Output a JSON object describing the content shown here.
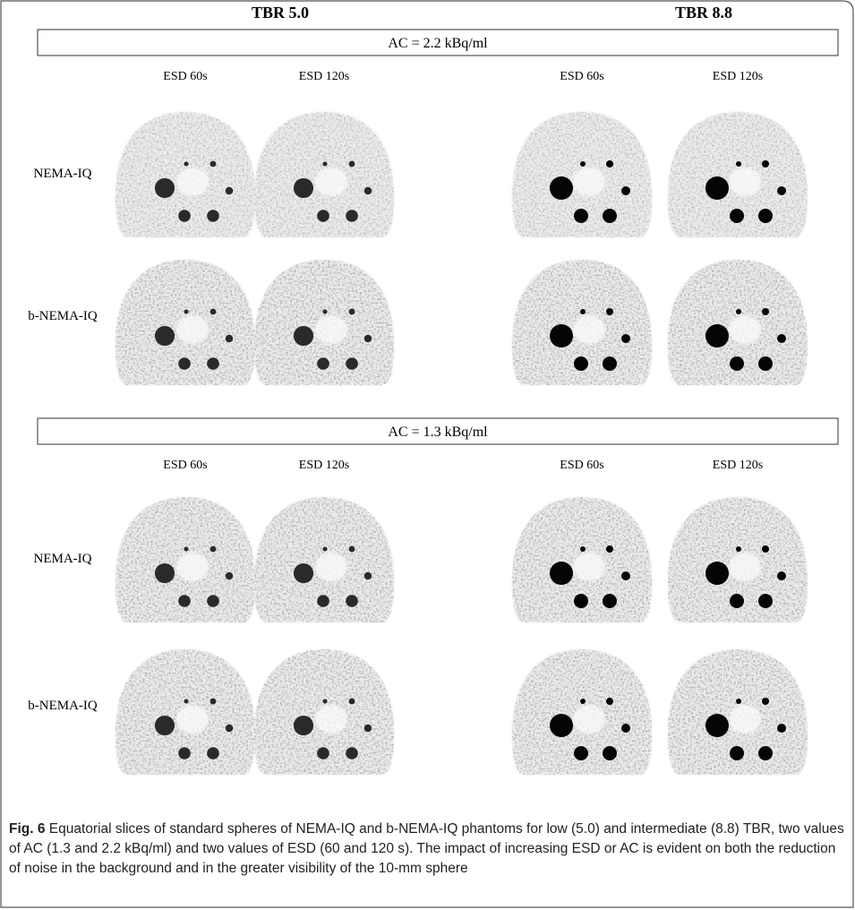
{
  "figure": {
    "headers": [
      "TBR 5.0",
      "TBR 8.8"
    ],
    "panels": [
      {
        "label": "AC = 2.2 kBq/ml",
        "columns": [
          "ESD 60s",
          "ESD 120s",
          "ESD 60s",
          "ESD 120s"
        ],
        "rows": [
          "NEMA-IQ",
          "b-NEMA-IQ"
        ]
      },
      {
        "label": "AC = 1.3 kBq/ml",
        "columns": [
          "ESD 60s",
          "ESD 120s",
          "ESD 60s",
          "ESD 120s"
        ],
        "rows": [
          "NEMA-IQ",
          "b-NEMA-IQ"
        ]
      }
    ],
    "caption": {
      "label": "Fig. 6",
      "text": "Equatorial slices of standard spheres of NEMA-IQ and b-NEMA-IQ phantoms for low (5.0) and intermediate (8.8) TBR, two values of AC (1.3 and 2.2 kBq/ml) and two values of ESD (60 and 120 s). The impact of increasing ESD or AC is evident on both the reduction of noise in the background and in the greater visibility of the 10-mm sphere"
    }
  }
}
